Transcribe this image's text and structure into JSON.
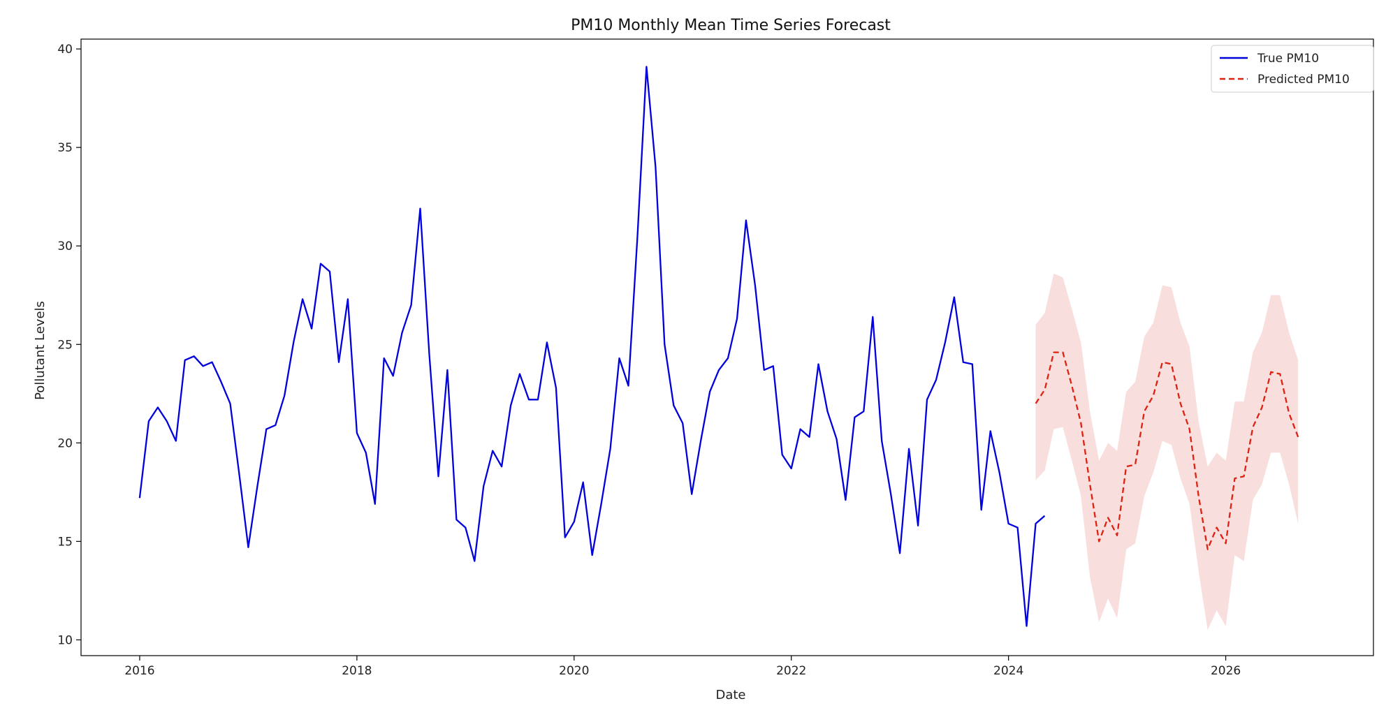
{
  "chart_data": {
    "type": "line",
    "title": "PM10 Monthly Mean Time Series Forecast",
    "xlabel": "Date",
    "ylabel": "Pollutant Levels",
    "xlim": [
      2015.46,
      2027.36
    ],
    "ylim": [
      9.2,
      40.5
    ],
    "x_ticks": [
      2016,
      2018,
      2020,
      2022,
      2024,
      2026
    ],
    "x_tick_labels": [
      "2016",
      "2018",
      "2020",
      "2022",
      "2024",
      "2026"
    ],
    "y_ticks": [
      10,
      15,
      20,
      25,
      30,
      35,
      40
    ],
    "y_tick_labels": [
      "10",
      "15",
      "20",
      "25",
      "30",
      "35",
      "40"
    ],
    "grid": false,
    "legend_position": "top-right",
    "series": [
      {
        "name": "True PM10",
        "color": "#0000dd",
        "style": "solid",
        "start": 2016.0,
        "step": 0.08333,
        "values": [
          17.2,
          21.1,
          21.8,
          21.1,
          20.1,
          24.2,
          24.4,
          23.9,
          24.1,
          23.1,
          22.0,
          18.4,
          14.7,
          17.8,
          20.7,
          20.9,
          22.4,
          25.1,
          27.3,
          25.8,
          29.1,
          28.7,
          24.1,
          27.3,
          20.5,
          19.5,
          16.9,
          24.3,
          23.4,
          25.6,
          27.0,
          31.9,
          24.5,
          18.3,
          23.7,
          16.1,
          15.7,
          14.0,
          17.8,
          19.6,
          18.8,
          21.9,
          23.5,
          22.2,
          22.2,
          25.1,
          22.8,
          15.2,
          16.0,
          18.0,
          14.3,
          16.9,
          19.7,
          24.3,
          22.9,
          30.5,
          39.1,
          34.0,
          25.0,
          21.9,
          21.0,
          17.4,
          20.1,
          22.6,
          23.7,
          24.3,
          26.3,
          31.3,
          28.0,
          23.7,
          23.9,
          19.4,
          18.7,
          20.7,
          20.3,
          24.0,
          21.6,
          20.2,
          17.1,
          21.3,
          21.6,
          26.4,
          20.1,
          17.4,
          14.4,
          19.7,
          15.8,
          22.2,
          23.2,
          25.1,
          27.4,
          24.1,
          24.0,
          16.6,
          20.6,
          18.5,
          15.9,
          15.7,
          10.7,
          15.9,
          16.3
        ]
      },
      {
        "name": "Predicted PM10",
        "color": "#dd2211",
        "style": "dashed",
        "start": 2024.25,
        "step": 0.08333,
        "values": [
          22.0,
          22.7,
          24.6,
          24.6,
          22.9,
          21.0,
          17.9,
          15.0,
          16.2,
          15.3,
          18.8,
          18.9,
          21.6,
          22.4,
          24.1,
          24.0,
          22.0,
          20.7,
          17.3,
          14.6,
          15.7,
          14.9,
          18.2,
          18.3,
          20.8,
          21.8,
          23.6,
          23.5,
          21.5,
          20.3
        ],
        "interval_lower": [
          18.1,
          18.6,
          20.7,
          20.8,
          19.1,
          17.3,
          13.2,
          10.9,
          12.1,
          11.1,
          14.6,
          14.9,
          17.3,
          18.5,
          20.1,
          19.9,
          18.2,
          16.9,
          13.5,
          10.5,
          11.5,
          10.7,
          14.3,
          14.0,
          17.1,
          17.9,
          19.5,
          19.5,
          17.9,
          15.9
        ],
        "interval_upper": [
          26.0,
          26.6,
          28.6,
          28.4,
          26.8,
          25.1,
          21.6,
          19.1,
          20.0,
          19.6,
          22.6,
          23.1,
          25.4,
          26.1,
          28.0,
          27.9,
          26.1,
          24.9,
          21.1,
          18.8,
          19.5,
          19.1,
          22.1,
          22.1,
          24.6,
          25.6,
          27.5,
          27.5,
          25.6,
          24.2
        ],
        "interval_color": "#f7d0d0"
      }
    ]
  }
}
